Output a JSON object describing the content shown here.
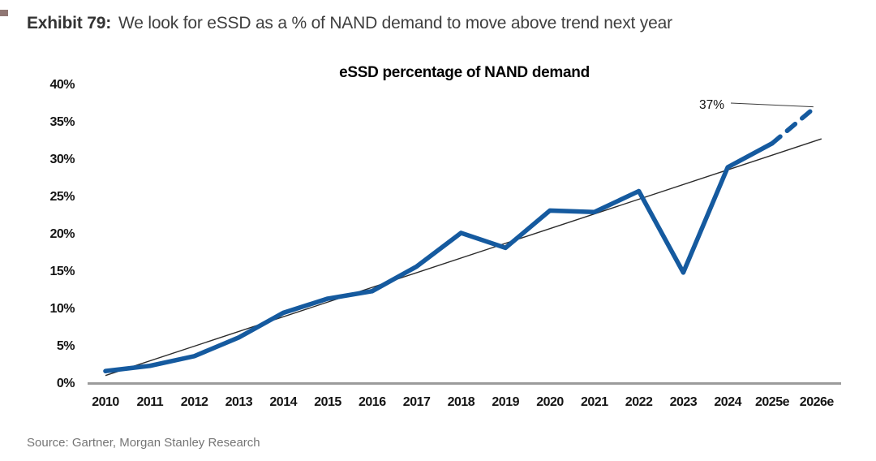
{
  "header": {
    "exhibit_label": "Exhibit 79:",
    "title": "We look for eSSD as a % of NAND demand to move above trend next year"
  },
  "chart_data": {
    "type": "line",
    "title": "eSSD percentage of NAND demand",
    "categories": [
      "2010",
      "2011",
      "2012",
      "2013",
      "2014",
      "2015",
      "2016",
      "2017",
      "2018",
      "2019",
      "2020",
      "2021",
      "2022",
      "2023",
      "2024",
      "2025e",
      "2026e"
    ],
    "series": [
      {
        "name": "eSSD percentage of NAND demand",
        "values": [
          1.5,
          2.2,
          3.5,
          6.0,
          9.3,
          11.2,
          12.2,
          15.5,
          20.0,
          18.0,
          23.0,
          22.8,
          25.6,
          14.7,
          28.8,
          32.0,
          37.0
        ],
        "color": "#155a9f",
        "forecast_from_index": 15,
        "forecast_style": "dashed"
      }
    ],
    "trend_line": {
      "name": "linear trend",
      "start_value": 0.9,
      "end_value": 32.6,
      "color": "#2b2b2b"
    },
    "annotation": {
      "text": "37%",
      "target_category": "2026e",
      "target_value": 37
    },
    "xlabel": "",
    "ylabel": "",
    "ylim": [
      0,
      40
    ],
    "y_tick_step": 5,
    "y_ticks": [
      "0%",
      "5%",
      "10%",
      "15%",
      "20%",
      "25%",
      "30%",
      "35%",
      "40%"
    ],
    "grid": false,
    "legend": false,
    "axis_color": "#9b9b9b"
  },
  "footer": {
    "source": "Source: Gartner, Morgan Stanley Research"
  }
}
